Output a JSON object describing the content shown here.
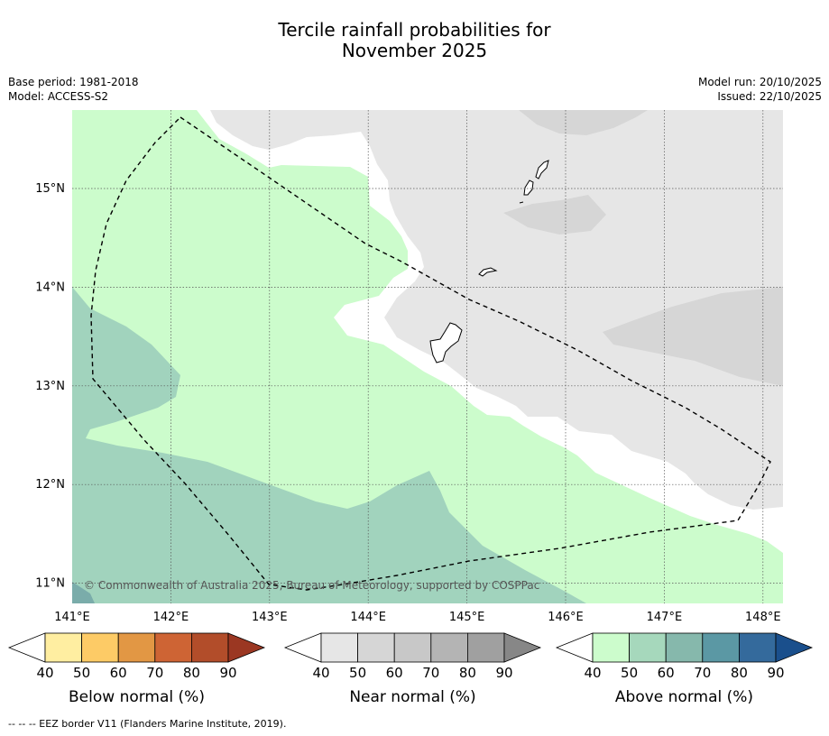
{
  "title_line1": "Tercile rainfall probabilities for",
  "title_line2": "November 2025",
  "base_period": "Base period: 1981-2018",
  "model": "Model: ACCESS-S2",
  "model_run": "Model run: 20/10/2025",
  "issued": "Issued: 22/10/2025",
  "lat_labels": [
    "15°N",
    "14°N",
    "13°N",
    "12°N",
    "11°N"
  ],
  "lon_labels": [
    "141°E",
    "142°E",
    "143°E",
    "144°E",
    "145°E",
    "146°E",
    "147°E",
    "148°E"
  ],
  "copyright": "© Commonwealth of Australia 2025, Bureau of Meteorology, supported by COSPPac",
  "footnote": "--  --  -- EEZ border V11 (Flanders Marine Institute, 2019).",
  "colorbars": {
    "ticks": [
      "40",
      "50",
      "60",
      "70",
      "80",
      "90"
    ],
    "below": {
      "label": "Below normal (%)",
      "colors": [
        "#ffeea1",
        "#fdcb66",
        "#e29744",
        "#ce6434",
        "#b24d2a",
        "#9b3722"
      ]
    },
    "near": {
      "label": "Near normal (%)",
      "colors": [
        "#e6e6e6",
        "#d6d6d6",
        "#c8c8c8",
        "#b4b4b4",
        "#a0a0a0",
        "#878787"
      ]
    },
    "above": {
      "label": "Above normal (%)",
      "colors": [
        "#ccfccc",
        "#a6d8bc",
        "#86b8ac",
        "#5b98a4",
        "#346a9c",
        "#1a4f8c"
      ]
    }
  },
  "region_colors": {
    "above_40": "#ccfccc",
    "above_50": "#a1d3bd",
    "above_60": "#7aacaa",
    "near_40": "#e6e6e6",
    "near_50": "#d6d6d6"
  }
}
